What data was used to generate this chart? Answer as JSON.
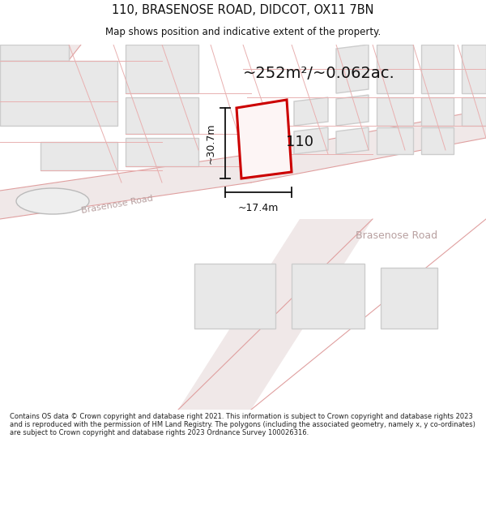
{
  "title": "110, BRASENOSE ROAD, DIDCOT, OX11 7BN",
  "subtitle": "Map shows position and indicative extent of the property.",
  "area_label": "~252m²/~0.062ac.",
  "number_label": "110",
  "road_label1": "Brasenose Road",
  "road_label2": "Brasenose Road",
  "dim_h": "~30.7m",
  "dim_w": "~17.4m",
  "footer": "Contains OS data © Crown copyright and database right 2021. This information is subject to Crown copyright and database rights 2023 and is reproduced with the permission of HM Land Registry. The polygons (including the associated geometry, namely x, y co-ordinates) are subject to Crown copyright and database rights 2023 Ordnance Survey 100026316.",
  "bg_color": "#ffffff",
  "map_bg": "#ffffff",
  "road_fill": "#f5eded",
  "road_line": "#e0a0a0",
  "parcel_line": "#e8b0b0",
  "building_fill": "#e8e8e8",
  "building_edge": "#cccccc",
  "plot_fill": "#f5eded",
  "plot_edge": "#cc0000",
  "dim_color": "#111111",
  "road_text": "#c0a8a8",
  "text_color": "#111111"
}
